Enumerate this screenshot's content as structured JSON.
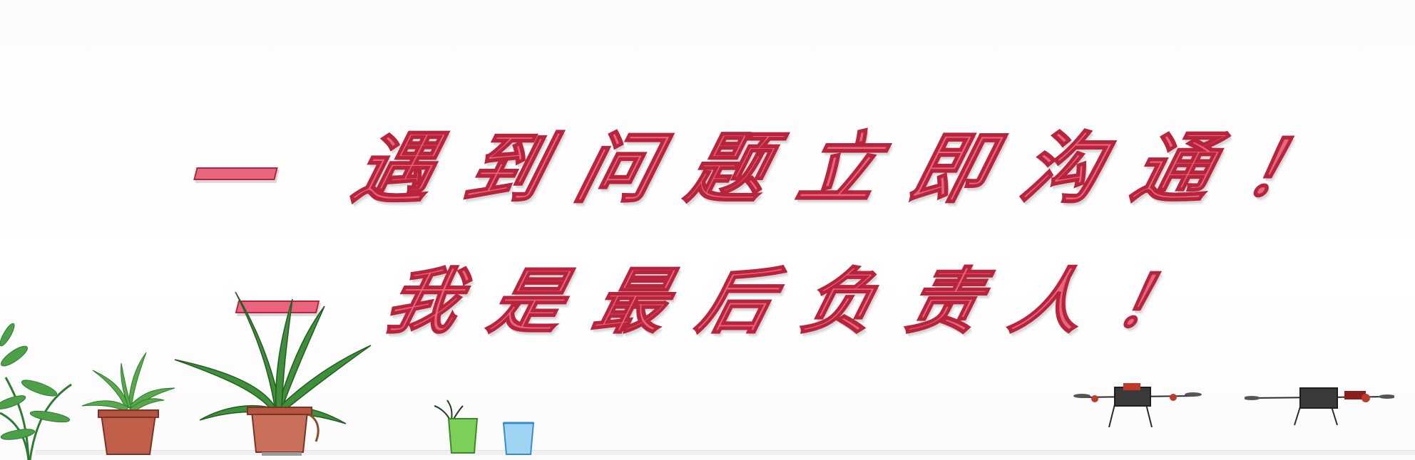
{
  "slogan": {
    "line1": {
      "dash": "一",
      "text": "遇到问题立即沟通！"
    },
    "line2": {
      "dash": "一",
      "text": "我是最后负责人！"
    }
  },
  "colors": {
    "text_fill": "#e8667d",
    "text_outline": "#b8243c",
    "plant_green": "#3f8f3a",
    "pot_terracotta": "#c0604a",
    "cup_green": "#7cd05a",
    "cup_blue": "#59b3e6",
    "drone_dark": "#3a3a3a",
    "drone_accent": "#c0392b"
  },
  "decor": {
    "plants": [
      "small-leafy-plant",
      "potted-fern",
      "potted-aloe",
      "cup-sprout"
    ],
    "cups": [
      "green-cup",
      "blue-cup"
    ],
    "drones": [
      "drone-left",
      "drone-right"
    ]
  }
}
